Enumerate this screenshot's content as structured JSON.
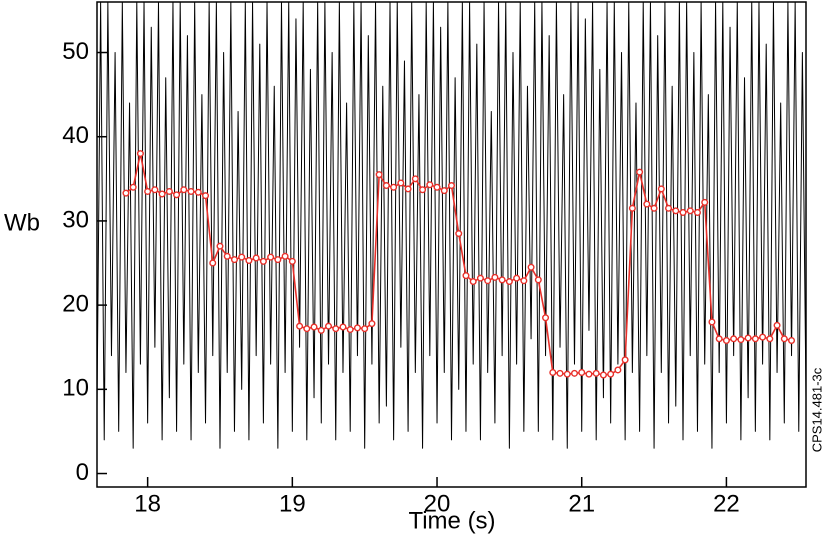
{
  "chart_data": {
    "type": "line",
    "xlabel": "Time (s)",
    "ylabel": "Wb",
    "side_label": "CPS14.481-3c",
    "xlim": [
      17.65,
      22.55
    ],
    "ylim": [
      -1.6,
      56
    ],
    "xticks": [
      18,
      19,
      20,
      21,
      22
    ],
    "yticks": [
      0,
      10,
      20,
      30,
      40,
      50
    ],
    "series": [
      {
        "color": "#000000",
        "markers": false,
        "x": [
          17.65,
          17.675,
          17.7,
          17.725,
          17.75,
          17.775,
          17.8,
          17.825,
          17.85,
          17.875,
          17.9,
          17.925,
          17.95,
          17.975,
          18,
          18.025,
          18.05,
          18.075,
          18.1,
          18.125,
          18.15,
          18.175,
          18.2,
          18.225,
          18.25,
          18.275,
          18.3,
          18.325,
          18.35,
          18.375,
          18.4,
          18.425,
          18.45,
          18.475,
          18.5,
          18.525,
          18.55,
          18.575,
          18.6,
          18.625,
          18.65,
          18.675,
          18.7,
          18.725,
          18.75,
          18.775,
          18.8,
          18.825,
          18.85,
          18.875,
          18.9,
          18.925,
          18.95,
          18.975,
          19,
          19.025,
          19.05,
          19.075,
          19.1,
          19.125,
          19.15,
          19.175,
          19.2,
          19.225,
          19.25,
          19.275,
          19.3,
          19.325,
          19.35,
          19.375,
          19.4,
          19.425,
          19.45,
          19.475,
          19.5,
          19.525,
          19.55,
          19.575,
          19.6,
          19.625,
          19.65,
          19.675,
          19.7,
          19.725,
          19.75,
          19.775,
          19.8,
          19.825,
          19.85,
          19.875,
          19.9,
          19.925,
          19.95,
          19.975,
          20,
          20.025,
          20.05,
          20.075,
          20.1,
          20.125,
          20.15,
          20.175,
          20.2,
          20.225,
          20.25,
          20.275,
          20.3,
          20.325,
          20.35,
          20.375,
          20.4,
          20.425,
          20.45,
          20.475,
          20.5,
          20.525,
          20.55,
          20.575,
          20.6,
          20.625,
          20.65,
          20.675,
          20.7,
          20.725,
          20.75,
          20.775,
          20.8,
          20.825,
          20.85,
          20.875,
          20.9,
          20.925,
          20.95,
          20.975,
          21,
          21.025,
          21.05,
          21.075,
          21.1,
          21.125,
          21.15,
          21.175,
          21.2,
          21.225,
          21.25,
          21.275,
          21.3,
          21.325,
          21.35,
          21.375,
          21.4,
          21.425,
          21.45,
          21.475,
          21.5,
          21.525,
          21.55,
          21.575,
          21.6,
          21.625,
          21.65,
          21.675,
          21.7,
          21.725,
          21.75,
          21.775,
          21.8,
          21.825,
          21.85,
          21.875,
          21.9,
          21.925,
          21.95,
          21.975,
          22,
          22.025,
          22.05,
          22.075,
          22.1,
          22.125,
          22.15,
          22.175,
          22.2,
          22.225,
          22.25,
          22.275,
          22.3,
          22.325,
          22.35,
          22.375,
          22.4,
          22.425,
          22.45,
          22.475,
          22.5,
          22.525,
          22.55
        ],
        "values": [
          8,
          56,
          4,
          56,
          14,
          50,
          5,
          56,
          12,
          44,
          3,
          56,
          13,
          56,
          6,
          53,
          15,
          56,
          4,
          47,
          9,
          56,
          5,
          56,
          13,
          52,
          4,
          56,
          12,
          45,
          6,
          56,
          14,
          56,
          3,
          50,
          12,
          56,
          5,
          43,
          10,
          56,
          4,
          56,
          14,
          51,
          6,
          56,
          13,
          46,
          3,
          56,
          12,
          56,
          5,
          54,
          15,
          56,
          4,
          48,
          9,
          56,
          6,
          56,
          13,
          50,
          4,
          56,
          12,
          44,
          5,
          56,
          14,
          56,
          3,
          52,
          13,
          56,
          6,
          46,
          8,
          56,
          4,
          56,
          15,
          49,
          5,
          56,
          12,
          45,
          3,
          56,
          14,
          56,
          6,
          53,
          12,
          56,
          4,
          47,
          10,
          56,
          5,
          56,
          13,
          51,
          4,
          56,
          12,
          43,
          6,
          56,
          14,
          56,
          3,
          50,
          13,
          56,
          5,
          46,
          16,
          56,
          5,
          56,
          14,
          52,
          4,
          56,
          15,
          45,
          3,
          56,
          13,
          56,
          5,
          54,
          17,
          56,
          4,
          48,
          9,
          56,
          6,
          56,
          13,
          50,
          4,
          56,
          12,
          44,
          5,
          56,
          14,
          56,
          3,
          52,
          12,
          56,
          6,
          46,
          8,
          56,
          4,
          56,
          14,
          50,
          5,
          56,
          13,
          45,
          3,
          56,
          12,
          56,
          6,
          53,
          14,
          56,
          4,
          47,
          9,
          56,
          5,
          56,
          13,
          51,
          4,
          56,
          12,
          44,
          6,
          56,
          14,
          56,
          5,
          50,
          9
        ]
      },
      {
        "color": "#e8302a",
        "markers": true,
        "x": [
          17.85,
          17.9,
          17.95,
          18,
          18.05,
          18.1,
          18.15,
          18.2,
          18.25,
          18.3,
          18.35,
          18.4,
          18.45,
          18.5,
          18.55,
          18.6,
          18.65,
          18.7,
          18.75,
          18.8,
          18.85,
          18.9,
          18.95,
          19,
          19.05,
          19.1,
          19.15,
          19.2,
          19.25,
          19.3,
          19.35,
          19.4,
          19.45,
          19.5,
          19.55,
          19.6,
          19.65,
          19.7,
          19.75,
          19.8,
          19.85,
          19.9,
          19.95,
          20,
          20.05,
          20.1,
          20.15,
          20.2,
          20.25,
          20.3,
          20.35,
          20.4,
          20.45,
          20.5,
          20.55,
          20.6,
          20.65,
          20.7,
          20.75,
          20.8,
          20.85,
          20.9,
          20.95,
          21,
          21.05,
          21.1,
          21.15,
          21.2,
          21.25,
          21.3,
          21.35,
          21.4,
          21.45,
          21.5,
          21.55,
          21.6,
          21.65,
          21.7,
          21.75,
          21.8,
          21.85,
          21.9,
          21.95,
          22,
          22.05,
          22.1,
          22.15,
          22.2,
          22.25,
          22.3,
          22.35,
          22.4,
          22.45
        ],
        "values": [
          33.3,
          34,
          38,
          33.5,
          33.7,
          33.2,
          33.5,
          33.1,
          33.7,
          33.5,
          33.4,
          33,
          25,
          27,
          25.8,
          25.4,
          25.7,
          25.3,
          25.6,
          25.2,
          25.7,
          25.4,
          25.8,
          25.2,
          17.5,
          17.2,
          17.4,
          17,
          17.5,
          17.2,
          17.4,
          17.1,
          17.3,
          17.2,
          17.8,
          35.5,
          34.2,
          34,
          34.5,
          33.8,
          35,
          33.7,
          34.3,
          34,
          33.6,
          34.2,
          28.5,
          23.5,
          22.8,
          23.2,
          22.9,
          23.3,
          23,
          22.8,
          23.2,
          22.9,
          24.5,
          23,
          18.5,
          12,
          11.9,
          11.8,
          11.9,
          12,
          11.8,
          11.9,
          11.7,
          11.8,
          12.3,
          13.5,
          31.5,
          35.8,
          32,
          31.5,
          33.8,
          31.5,
          31.2,
          31,
          31.2,
          31,
          32.2,
          18,
          16,
          15.8,
          16,
          15.9,
          16.1,
          16,
          16.2,
          16,
          17.6,
          16,
          15.8
        ]
      }
    ]
  }
}
